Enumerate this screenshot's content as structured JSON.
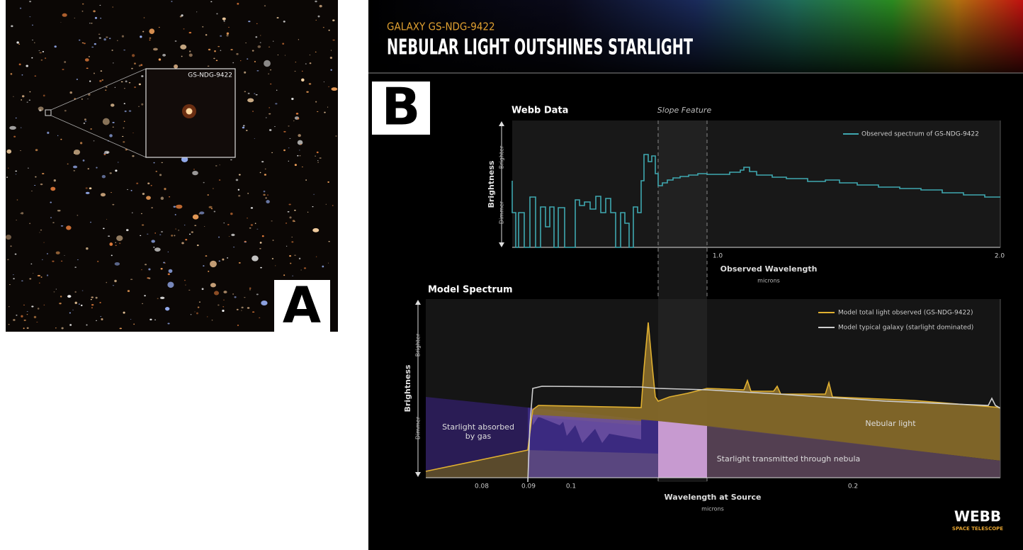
{
  "panel_a": {
    "label": "A",
    "inset_label": "GS-NDG-9422"
  },
  "panel_b": {
    "label": "B",
    "subtitle": "GALAXY GS-NDG-9422",
    "title": "NEBULAR LIGHT OUTSHINES STARLIGHT",
    "webb_data": {
      "title": "Webb Data",
      "annotation": "Slope Feature",
      "legend": "Observed spectrum of GS-NDG-9422",
      "y_label": "Brightness",
      "y_high": "Brighter",
      "y_low": "Dimmer",
      "x_ticks": [
        "1.0",
        "2.0"
      ],
      "x_label": "Observed Wavelength",
      "x_unit": "microns"
    },
    "model": {
      "title": "Model Spectrum",
      "legend": [
        "Model total light observed (GS-NDG-9422)",
        "Model typical galaxy (starlight dominated)"
      ],
      "y_label": "Brightness",
      "y_high": "Brighter",
      "y_low": "Dimmer",
      "region_absorbed": [
        "Starlight absorbed",
        "by gas"
      ],
      "region_nebular": "Nebular light",
      "region_transmitted": "Starlight transmitted through nebula",
      "x_ticks": [
        "0.08",
        "0.09",
        "0.1",
        "0.2"
      ],
      "x_label": "Wavelength at Source",
      "x_unit": "microns"
    },
    "logo": {
      "name": "WEBB",
      "subtitle": "SPACE TELESCOPE"
    }
  }
}
